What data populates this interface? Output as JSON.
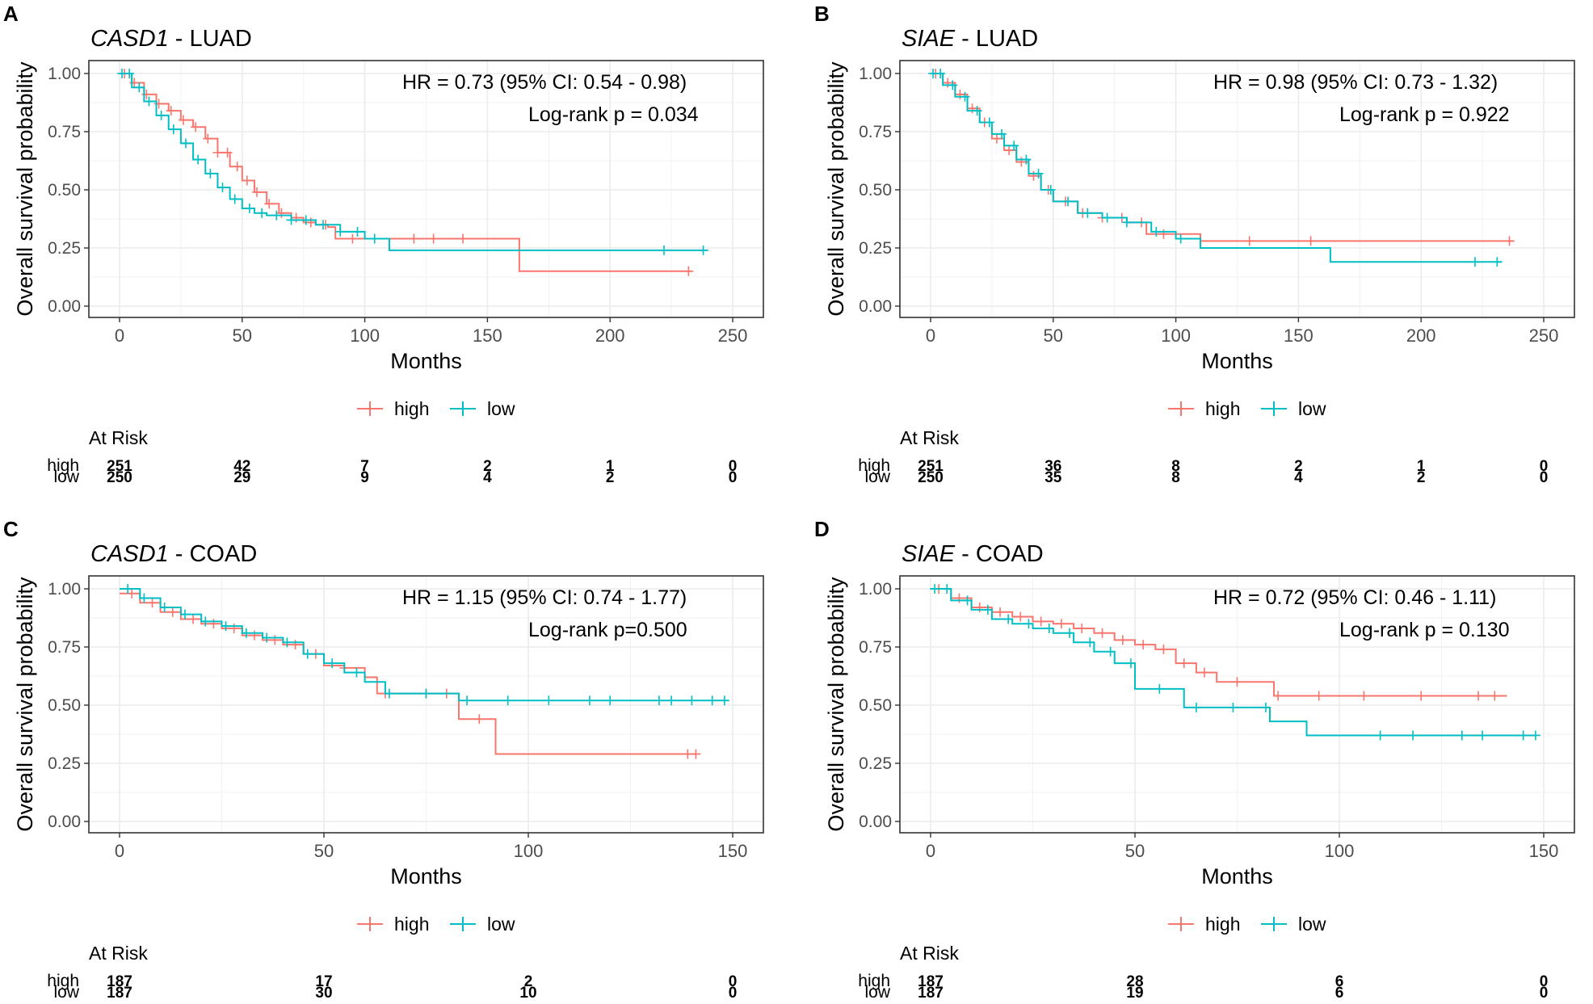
{
  "figure": {
    "panel_letters": [
      "A",
      "B",
      "C",
      "D"
    ],
    "at_risk_title": "At Risk",
    "xlabel": "Months",
    "ylabel": "Overall survival probability"
  },
  "colors": {
    "high": "#F8766D",
    "low": "#00BFC4",
    "grid": "#EBEBEB",
    "frame": "#333333",
    "text": "#000000",
    "tick": "#4D4D4D"
  },
  "chart_data": [
    {
      "type": "line",
      "panel": "A",
      "title_gene": "CASD1",
      "title_rest": " - LUAD",
      "stat1": "HR = 0.73 (95% CI: 0.54 - 0.98)",
      "stat2": "Log-rank p = 0.034",
      "xlabel": "Months",
      "ylabel": "Overall survival probability",
      "xlim": [
        0,
        250
      ],
      "ylim": [
        0,
        1
      ],
      "x_ticks": [
        0,
        50,
        100,
        150,
        200,
        250
      ],
      "y_ticks": [
        0.0,
        0.25,
        0.5,
        0.75,
        1.0
      ],
      "y_tick_labels": [
        "0.00",
        "0.25",
        "0.50",
        "0.75",
        "1.00"
      ],
      "legend": [
        "high",
        "low"
      ],
      "series": [
        {
          "name": "high",
          "color": "#F8766D",
          "x": [
            0,
            5,
            10,
            15,
            20,
            25,
            30,
            35,
            40,
            45,
            50,
            55,
            60,
            65,
            70,
            75,
            80,
            85,
            88,
            110,
            163,
            233
          ],
          "y": [
            1.0,
            0.96,
            0.91,
            0.87,
            0.84,
            0.8,
            0.77,
            0.72,
            0.66,
            0.6,
            0.54,
            0.49,
            0.44,
            0.4,
            0.38,
            0.36,
            0.35,
            0.34,
            0.29,
            0.29,
            0.15,
            0.15
          ],
          "censor_x": [
            2,
            6,
            11,
            16,
            21,
            26,
            31,
            36,
            40,
            44,
            48,
            52,
            56,
            61,
            66,
            72,
            78,
            84,
            95,
            120,
            128,
            140,
            232
          ]
        },
        {
          "name": "low",
          "color": "#00BFC4",
          "x": [
            0,
            5,
            10,
            15,
            20,
            25,
            30,
            35,
            40,
            45,
            50,
            55,
            60,
            70,
            80,
            90,
            100,
            110,
            240
          ],
          "y": [
            1.0,
            0.94,
            0.88,
            0.82,
            0.76,
            0.7,
            0.63,
            0.57,
            0.51,
            0.46,
            0.42,
            0.4,
            0.39,
            0.37,
            0.35,
            0.32,
            0.29,
            0.24,
            0.24
          ],
          "censor_x": [
            1,
            4,
            8,
            12,
            17,
            22,
            27,
            32,
            37,
            42,
            47,
            53,
            58,
            64,
            70,
            76,
            83,
            90,
            97,
            104,
            222,
            238
          ]
        }
      ],
      "at_risk": {
        "times": [
          0,
          50,
          100,
          150,
          200,
          250
        ],
        "rows": [
          {
            "label": "high",
            "values": [
              "251",
              "42",
              "7",
              "2",
              "1",
              "0"
            ]
          },
          {
            "label": "low",
            "values": [
              "250",
              "29",
              "9",
              "4",
              "2",
              "0"
            ]
          }
        ]
      }
    },
    {
      "type": "line",
      "panel": "B",
      "title_gene": "SIAE",
      "title_rest": " - LUAD",
      "stat1": "HR = 0.98 (95% CI: 0.73 - 1.32)",
      "stat2": "Log-rank p = 0.922",
      "xlabel": "Months",
      "ylabel": "Overall survival probability",
      "xlim": [
        0,
        250
      ],
      "ylim": [
        0,
        1
      ],
      "x_ticks": [
        0,
        50,
        100,
        150,
        200,
        250
      ],
      "y_ticks": [
        0.0,
        0.25,
        0.5,
        0.75,
        1.0
      ],
      "y_tick_labels": [
        "0.00",
        "0.25",
        "0.50",
        "0.75",
        "1.00"
      ],
      "legend": [
        "high",
        "low"
      ],
      "series": [
        {
          "name": "high",
          "color": "#F8766D",
          "x": [
            0,
            5,
            10,
            15,
            20,
            25,
            30,
            35,
            40,
            45,
            50,
            60,
            70,
            80,
            88,
            108,
            110,
            238
          ],
          "y": [
            1.0,
            0.96,
            0.91,
            0.85,
            0.79,
            0.72,
            0.67,
            0.62,
            0.56,
            0.5,
            0.45,
            0.4,
            0.38,
            0.36,
            0.31,
            0.31,
            0.28,
            0.28
          ],
          "censor_x": [
            2,
            7,
            12,
            17,
            22,
            27,
            32,
            37,
            42,
            48,
            55,
            62,
            70,
            78,
            86,
            95,
            130,
            155,
            236
          ]
        },
        {
          "name": "low",
          "color": "#00BFC4",
          "x": [
            0,
            5,
            10,
            15,
            20,
            25,
            30,
            35,
            40,
            45,
            50,
            60,
            70,
            80,
            90,
            100,
            110,
            163,
            233
          ],
          "y": [
            1.0,
            0.95,
            0.9,
            0.84,
            0.79,
            0.74,
            0.69,
            0.63,
            0.57,
            0.5,
            0.45,
            0.4,
            0.38,
            0.36,
            0.32,
            0.29,
            0.25,
            0.19,
            0.19
          ],
          "censor_x": [
            1,
            4,
            9,
            14,
            19,
            24,
            29,
            34,
            39,
            44,
            49,
            56,
            64,
            72,
            80,
            92,
            102,
            222,
            231
          ]
        }
      ],
      "at_risk": {
        "times": [
          0,
          50,
          100,
          150,
          200,
          250
        ],
        "rows": [
          {
            "label": "high",
            "values": [
              "251",
              "36",
              "8",
              "2",
              "1",
              "0"
            ]
          },
          {
            "label": "low",
            "values": [
              "250",
              "35",
              "8",
              "4",
              "2",
              "0"
            ]
          }
        ]
      }
    },
    {
      "type": "line",
      "panel": "C",
      "title_gene": "CASD1",
      "title_rest": " - COAD",
      "stat1": "HR = 1.15 (95% CI: 0.74 - 1.77)",
      "stat2": "Log-rank p=0.500",
      "xlabel": "Months",
      "ylabel": "Overall survival probability",
      "xlim": [
        0,
        150
      ],
      "ylim": [
        0,
        1
      ],
      "x_ticks": [
        0,
        50,
        100,
        150
      ],
      "y_ticks": [
        0.0,
        0.25,
        0.5,
        0.75,
        1.0
      ],
      "y_tick_labels": [
        "0.00",
        "0.25",
        "0.50",
        "0.75",
        "1.00"
      ],
      "legend": [
        "high",
        "low"
      ],
      "series": [
        {
          "name": "high",
          "color": "#F8766D",
          "x": [
            0,
            5,
            10,
            15,
            20,
            25,
            30,
            35,
            40,
            45,
            50,
            55,
            60,
            63,
            83,
            88,
            92,
            141
          ],
          "y": [
            0.98,
            0.94,
            0.9,
            0.87,
            0.85,
            0.83,
            0.8,
            0.78,
            0.76,
            0.72,
            0.67,
            0.66,
            0.62,
            0.55,
            0.44,
            0.44,
            0.29,
            0.29
          ],
          "censor_x": [
            3,
            8,
            13,
            18,
            23,
            28,
            33,
            38,
            43,
            48,
            55,
            65,
            75,
            80,
            88,
            139,
            141
          ]
        },
        {
          "name": "low",
          "color": "#00BFC4",
          "x": [
            0,
            5,
            10,
            15,
            20,
            25,
            30,
            35,
            40,
            45,
            50,
            55,
            60,
            65,
            70,
            80,
            83,
            149
          ],
          "y": [
            1.0,
            0.96,
            0.92,
            0.89,
            0.86,
            0.84,
            0.81,
            0.79,
            0.77,
            0.72,
            0.68,
            0.64,
            0.6,
            0.55,
            0.55,
            0.55,
            0.52,
            0.52
          ],
          "censor_x": [
            2,
            6,
            11,
            16,
            21,
            26,
            31,
            36,
            41,
            46,
            52,
            58,
            66,
            75,
            85,
            95,
            105,
            115,
            120,
            132,
            135,
            140,
            145,
            148
          ]
        }
      ],
      "at_risk": {
        "times": [
          0,
          50,
          100,
          150
        ],
        "rows": [
          {
            "label": "high",
            "values": [
              "187",
              "17",
              "2",
              "0"
            ]
          },
          {
            "label": "low",
            "values": [
              "187",
              "30",
              "10",
              "0"
            ]
          }
        ]
      }
    },
    {
      "type": "line",
      "panel": "D",
      "title_gene": "SIAE",
      "title_rest": " - COAD",
      "stat1": "HR = 0.72 (95% CI: 0.46 - 1.11)",
      "stat2": "Log-rank p = 0.130",
      "xlabel": "Months",
      "ylabel": "Overall survival probability",
      "xlim": [
        0,
        150
      ],
      "ylim": [
        0,
        1
      ],
      "x_ticks": [
        0,
        50,
        100,
        150
      ],
      "y_ticks": [
        0.0,
        0.25,
        0.5,
        0.75,
        1.0
      ],
      "y_tick_labels": [
        "0.00",
        "0.25",
        "0.50",
        "0.75",
        "1.00"
      ],
      "legend": [
        "high",
        "low"
      ],
      "series": [
        {
          "name": "high",
          "color": "#F8766D",
          "x": [
            0,
            5,
            10,
            15,
            20,
            25,
            30,
            35,
            40,
            45,
            50,
            55,
            60,
            65,
            70,
            84,
            141
          ],
          "y": [
            1.0,
            0.96,
            0.92,
            0.9,
            0.88,
            0.86,
            0.85,
            0.83,
            0.81,
            0.78,
            0.76,
            0.74,
            0.68,
            0.64,
            0.6,
            0.54,
            0.54
          ],
          "censor_x": [
            2,
            7,
            12,
            17,
            22,
            27,
            32,
            37,
            42,
            47,
            52,
            57,
            62,
            67,
            75,
            85,
            95,
            106,
            120,
            134,
            138
          ]
        },
        {
          "name": "low",
          "color": "#00BFC4",
          "x": [
            0,
            5,
            10,
            15,
            20,
            25,
            30,
            35,
            40,
            45,
            50,
            62,
            80,
            83,
            92,
            148
          ],
          "y": [
            1.0,
            0.95,
            0.91,
            0.87,
            0.85,
            0.83,
            0.81,
            0.77,
            0.73,
            0.68,
            0.57,
            0.49,
            0.49,
            0.43,
            0.37,
            0.37
          ],
          "censor_x": [
            1,
            4,
            9,
            14,
            19,
            24,
            29,
            34,
            39,
            44,
            49,
            56,
            65,
            74,
            82,
            110,
            118,
            130,
            135,
            145,
            148
          ]
        }
      ],
      "at_risk": {
        "times": [
          0,
          50,
          100,
          150
        ],
        "rows": [
          {
            "label": "high",
            "values": [
              "187",
              "28",
              "6",
              "0"
            ]
          },
          {
            "label": "low",
            "values": [
              "187",
              "19",
              "6",
              "0"
            ]
          }
        ]
      }
    }
  ]
}
